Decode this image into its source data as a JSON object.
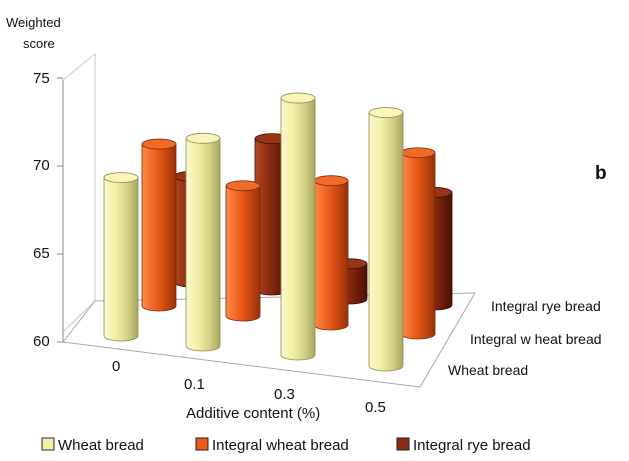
{
  "chart_data": {
    "type": "bar",
    "subtype": "3d-cylinder-grouped",
    "panel_label": "b",
    "ylabel_lines": [
      "Weighted",
      "score"
    ],
    "xlabel": "Additive content (%)",
    "categories": [
      "0",
      "0.1",
      "0.3",
      "0.5"
    ],
    "depth_labels": [
      "Integral rye bread",
      "Integral w heat bread",
      "Wheat bread"
    ],
    "y_ticks": [
      "75",
      "70",
      "65",
      "60"
    ],
    "ylim": [
      60,
      75
    ],
    "grid": false,
    "legend_position": "bottom",
    "series": [
      {
        "name": "Wheat bread",
        "legend_label": "Wheat bread",
        "color": "#f3f0a8",
        "values": [
          69.0,
          71.8,
          74.6,
          74.4
        ]
      },
      {
        "name": "Integral wheat bread",
        "legend_label": "Integral wheat bread",
        "color": "#ee5a1e",
        "values": [
          69.2,
          67.4,
          68.2,
          70.3
        ]
      },
      {
        "name": "Integral rye bread",
        "legend_label": "Integral rye bread",
        "color": "#8e2a12",
        "values": [
          66.0,
          68.6,
          62.0,
          66.4
        ]
      }
    ]
  }
}
